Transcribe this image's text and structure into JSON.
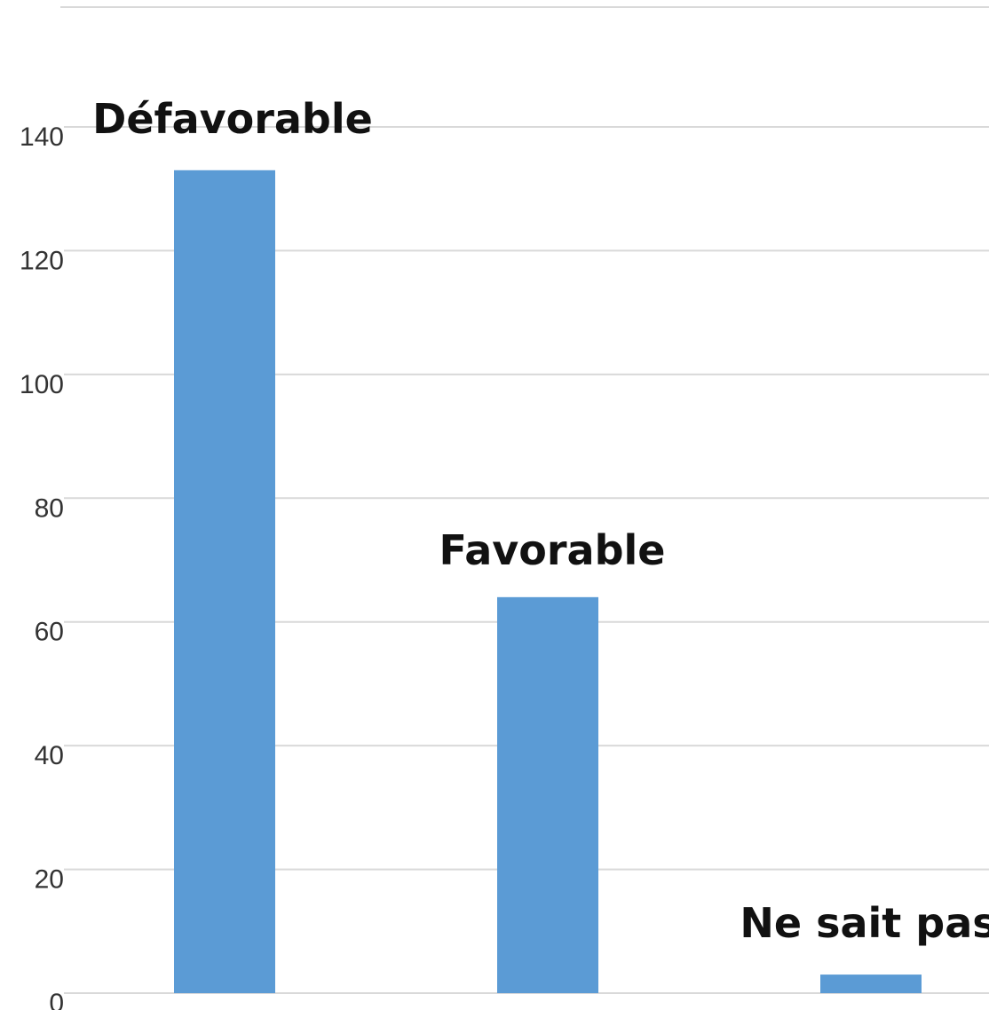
{
  "chart_data": {
    "type": "bar",
    "categories": [
      "Défavorable",
      "Favorable",
      "Ne sait pas"
    ],
    "values": [
      133,
      64,
      3
    ],
    "title": "",
    "xlabel": "",
    "ylabel": "",
    "ylim": [
      0,
      140
    ],
    "yticks": [
      0,
      20,
      40,
      60,
      80,
      100,
      120,
      140
    ],
    "grid": true,
    "bar_color": "#5B9BD5",
    "grid_color": "#D9D9D9"
  }
}
